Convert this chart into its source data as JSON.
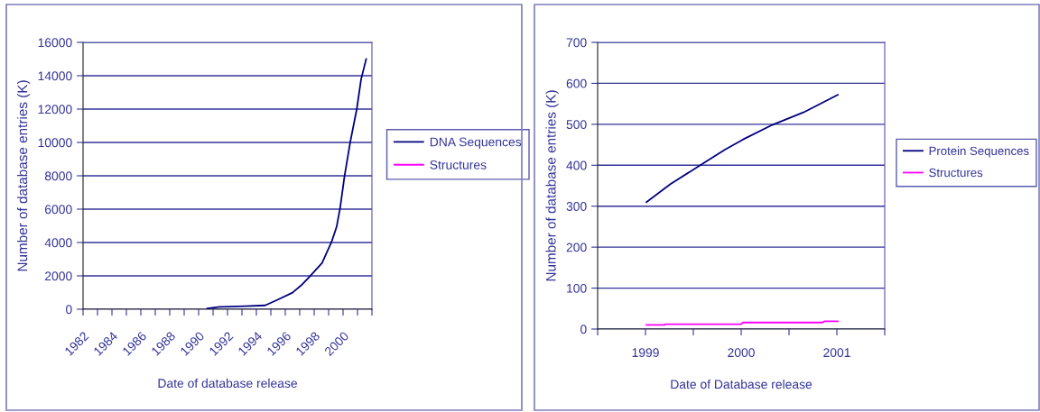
{
  "chart_data": [
    {
      "type": "line",
      "xlabel": "Date of database release",
      "ylabel": "Number of database entries (K)",
      "xlim": [
        1982,
        2002
      ],
      "ylim": [
        0,
        16000
      ],
      "xticks": [
        {
          "value": 1982,
          "label": "1982"
        },
        {
          "value": 1983,
          "label": null
        },
        {
          "value": 1984,
          "label": "1984"
        },
        {
          "value": 1985,
          "label": null
        },
        {
          "value": 1986,
          "label": "1986"
        },
        {
          "value": 1987,
          "label": null
        },
        {
          "value": 1988,
          "label": "1988"
        },
        {
          "value": 1989,
          "label": null
        },
        {
          "value": 1990,
          "label": "1990"
        },
        {
          "value": 1991,
          "label": null
        },
        {
          "value": 1992,
          "label": "1992"
        },
        {
          "value": 1993,
          "label": null
        },
        {
          "value": 1994,
          "label": "1994"
        },
        {
          "value": 1995,
          "label": null
        },
        {
          "value": 1996,
          "label": "1996"
        },
        {
          "value": 1997,
          "label": null
        },
        {
          "value": 1998,
          "label": "1998"
        },
        {
          "value": 1999,
          "label": null
        },
        {
          "value": 2000,
          "label": "2000"
        },
        {
          "value": 2001,
          "label": null
        },
        {
          "value": 2002,
          "label": null
        }
      ],
      "yticks": [
        0,
        2000,
        4000,
        6000,
        8000,
        10000,
        12000,
        14000,
        16000
      ],
      "grid": "y",
      "legend": "right",
      "marker": "none",
      "line_style": "solid",
      "series": [
        {
          "name": "DNA Sequences",
          "color": "#000080",
          "x": [
            1990.6,
            1991.45,
            1993.2,
            1994.6,
            1995.4,
            1996.5,
            1997.1,
            1997.7,
            1998.55,
            1999.2,
            1999.55,
            1999.8,
            2000.1,
            2000.5,
            2000.95,
            2001.25,
            2001.6
          ],
          "values": [
            50,
            140,
            180,
            230,
            540,
            990,
            1430,
            1970,
            2780,
            4030,
            4930,
            6090,
            7970,
            10030,
            12000,
            13790,
            15000
          ]
        },
        {
          "name": "Structures",
          "color": "#ff00ff"
        }
      ]
    },
    {
      "type": "line",
      "xlabel": "Date of Database release",
      "ylabel": "Number of database entries (K)",
      "xlim": [
        1998.5,
        2001.5
      ],
      "ylim": [
        0,
        700
      ],
      "xticks": [
        {
          "value": 1998.5,
          "label": null
        },
        {
          "value": 1999,
          "label": "1999"
        },
        {
          "value": 1999.5,
          "label": null
        },
        {
          "value": 2000,
          "label": "2000"
        },
        {
          "value": 2000.5,
          "label": null
        },
        {
          "value": 2001,
          "label": "2001"
        },
        {
          "value": 2001.5,
          "label": null
        }
      ],
      "yticks": [
        0,
        100,
        200,
        300,
        400,
        500,
        600,
        700
      ],
      "grid": "y",
      "legend": "right",
      "marker": "none",
      "line_style": "solid",
      "series": [
        {
          "name": "Protein Sequences",
          "color": "#000080",
          "x": [
            1999.01,
            1999.26,
            1999.58,
            1999.83,
            2000.02,
            2000.33,
            2000.65,
            2001.01
          ],
          "values": [
            310,
            354,
            401,
            438,
            463,
            499,
            529,
            572
          ]
        },
        {
          "name": "Structures",
          "color": "#ff00ff",
          "x": [
            1999.01,
            1999.2,
            1999.21,
            2000.0,
            2000.02,
            2000.85,
            2000.87,
            2001.01
          ],
          "values": [
            10,
            10,
            12,
            12,
            16,
            16,
            19,
            19
          ]
        }
      ]
    }
  ]
}
